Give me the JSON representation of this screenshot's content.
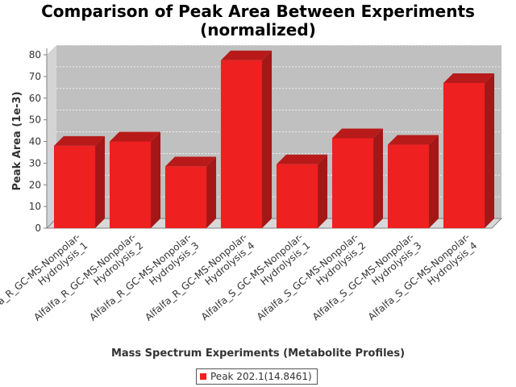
{
  "chart_data": {
    "type": "bar",
    "title_lines": [
      "Comparison of Peak Area Between Experiments",
      "(normalized)"
    ],
    "xlabel": "Mass Spectrum Experiments (Metabolite Profiles)",
    "ylabel": "Peak Area (1e-3)",
    "ylim": [
      0,
      80
    ],
    "yticks": [
      0,
      10,
      20,
      30,
      40,
      50,
      60,
      70,
      80
    ],
    "grid": true,
    "legend_position": "bottom-center",
    "categories": [
      [
        "Alfalfa_R_GC-MS-Nonpolar-",
        "Hydrolysis_1"
      ],
      [
        "Alfalfa_R_GC-MS-Nonpolar-",
        "Hydrolysis_2"
      ],
      [
        "Alfalfa_R_GC-MS-Nonpolar-",
        "Hydrolysis_3"
      ],
      [
        "Alfalfa_R_GC-MS-Nonpolar-",
        "Hydrolysis_4"
      ],
      [
        "Alfalfa_S_GC-MS-Nonpolar-",
        "Hydrolysis_1"
      ],
      [
        "Alfalfa_S_GC-MS-Nonpolar-",
        "Hydrolysis_2"
      ],
      [
        "Alfalfa_S_GC-MS-Nonpolar-",
        "Hydrolysis_3"
      ],
      [
        "Alfalfa_S_GC-MS-Nonpolar-",
        "Hydrolysis_4"
      ]
    ],
    "series": [
      {
        "name": "Peak 202.1(14.8461)",
        "color": "#ee2020",
        "values": [
          38,
          40,
          28.5,
          77.5,
          29.5,
          41.5,
          38.5,
          67
        ]
      }
    ]
  }
}
